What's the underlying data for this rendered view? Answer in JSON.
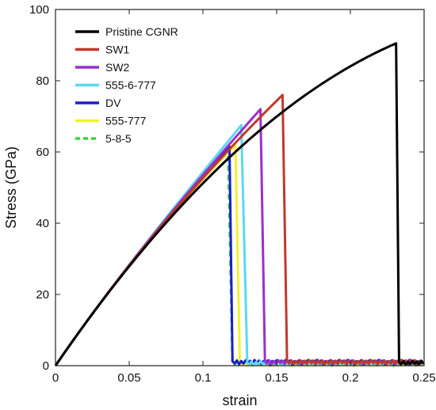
{
  "chart_data": {
    "type": "line",
    "xlabel": "strain",
    "ylabel": "Stress (GPa)",
    "xlim": [
      0,
      0.25
    ],
    "ylim": [
      0,
      100
    ],
    "xticks": [
      "0",
      "0.05",
      "0.1",
      "0.15",
      "0.2",
      "0.25"
    ],
    "yticks": [
      "0",
      "20",
      "40",
      "60",
      "80",
      "100"
    ],
    "grid": false,
    "legend_position": "top-left",
    "series": [
      {
        "name": "Pristine CGNR",
        "color": "#000000",
        "dash": false,
        "peak_strain": 0.231,
        "peak_stress": 90.5,
        "drop_end_strain": 0.233,
        "residual_stress": 0.8
      },
      {
        "name": "SW1",
        "color": "#c0392b",
        "dash": false,
        "peak_strain": 0.154,
        "peak_stress": 76.0,
        "drop_end_strain": 0.157,
        "residual_stress": 1.0
      },
      {
        "name": "SW2",
        "color": "#9b30c8",
        "dash": false,
        "peak_strain": 0.139,
        "peak_stress": 72.0,
        "drop_end_strain": 0.142,
        "residual_stress": 1.0
      },
      {
        "name": "555-6-777",
        "color": "#5ad8f5",
        "dash": false,
        "peak_strain": 0.126,
        "peak_stress": 67.5,
        "drop_end_strain": 0.13,
        "residual_stress": 0.7
      },
      {
        "name": "DV",
        "color": "#1a1fc8",
        "dash": false,
        "peak_strain": 0.118,
        "peak_stress": 61.5,
        "drop_end_strain": 0.12,
        "residual_stress": 1.0
      },
      {
        "name": "555-777",
        "color": "#f2f230",
        "dash": false,
        "peak_strain": 0.122,
        "peak_stress": 62.0,
        "drop_end_strain": 0.125,
        "residual_stress": 0.5
      },
      {
        "name": "5-8-5",
        "color": "#38d83a",
        "dash": true,
        "peak_strain": 0.117,
        "peak_stress": 61.0,
        "drop_end_strain": 0.12,
        "residual_stress": 0.6
      }
    ]
  }
}
